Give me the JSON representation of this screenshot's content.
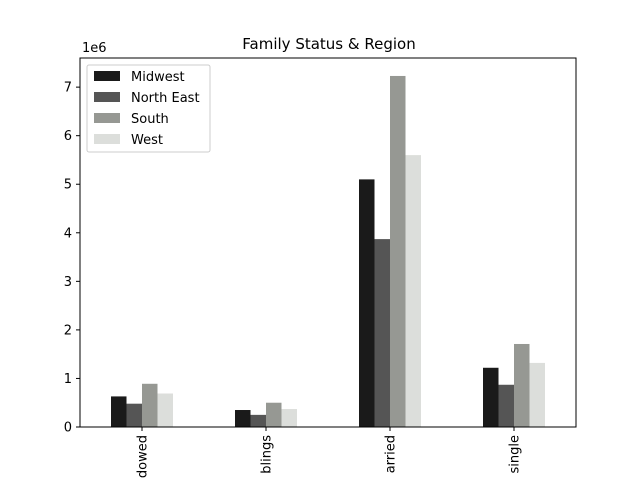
{
  "chart_data": {
    "type": "bar",
    "title": "Family Status & Region",
    "xlabel": "",
    "ylabel": "",
    "y_offset_label": "1e6",
    "categories_visible": [
      "dowed",
      "blings",
      "arried",
      "single"
    ],
    "categories": [
      "widowed",
      "siblings",
      "married",
      "single"
    ],
    "ylim": [
      0,
      7.6
    ],
    "yticks": [
      0,
      1,
      2,
      3,
      4,
      5,
      6,
      7
    ],
    "legend_position": "top-left",
    "series": [
      {
        "name": "Midwest",
        "color": "#1a1a1a",
        "values": [
          0.63,
          0.35,
          5.1,
          1.22
        ]
      },
      {
        "name": "North East",
        "color": "#555555",
        "values": [
          0.48,
          0.25,
          3.87,
          0.87
        ]
      },
      {
        "name": "South",
        "color": "#969893",
        "values": [
          0.89,
          0.5,
          7.23,
          1.71
        ]
      },
      {
        "name": "West",
        "color": "#dcdedb",
        "values": [
          0.69,
          0.37,
          5.6,
          1.32
        ]
      }
    ]
  }
}
